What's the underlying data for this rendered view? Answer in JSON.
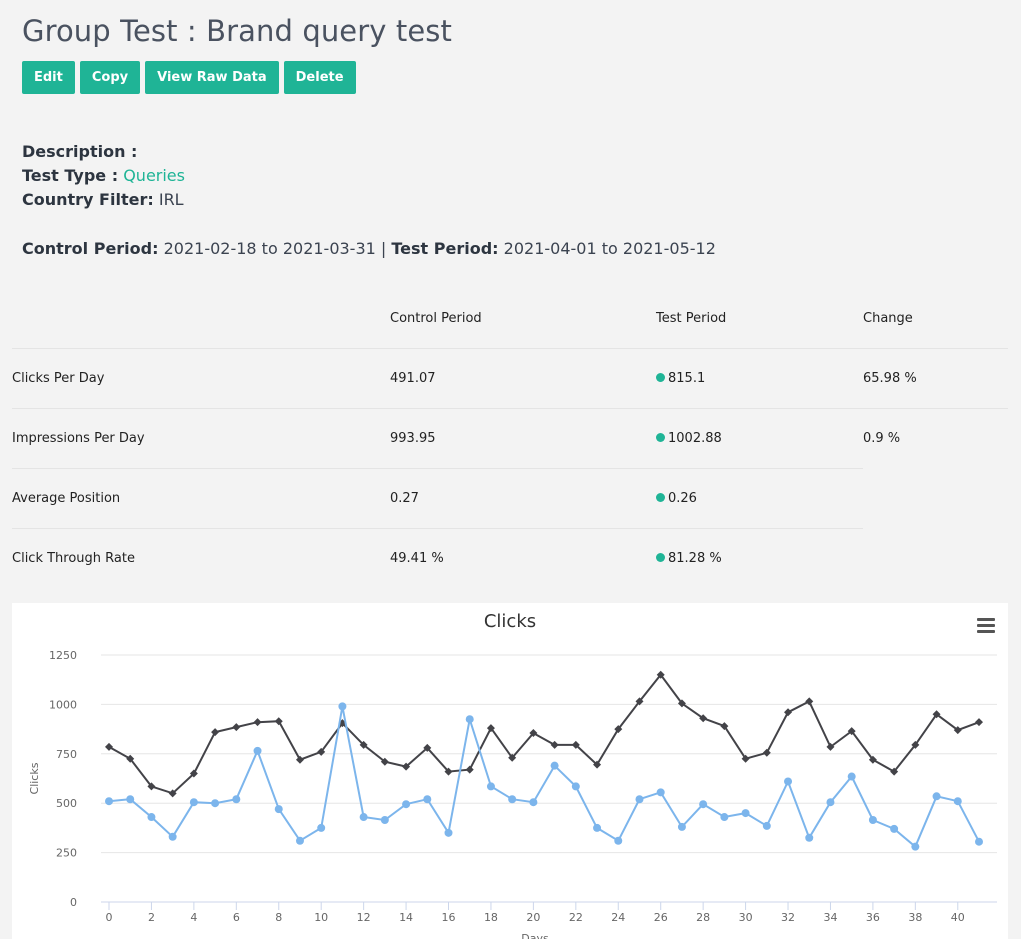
{
  "page": {
    "title": "Group Test : Brand query test"
  },
  "buttons": {
    "edit": "Edit",
    "copy": "Copy",
    "view_raw": "View Raw Data",
    "delete": "Delete"
  },
  "meta": {
    "description_label": "Description :",
    "test_type_label": "Test Type :",
    "test_type_value": "Queries",
    "country_label": "Country Filter:",
    "country_value": "IRL",
    "control_label": "Control Period:",
    "control_value": "2021-02-18 to 2021-03-31",
    "separator": "|",
    "test_label": "Test Period:",
    "test_value": "2021-04-01 to 2021-05-12"
  },
  "stats": {
    "headers": [
      "",
      "Control Period",
      "Test Period",
      "Change"
    ],
    "rows": [
      {
        "metric": "Clicks Per Day",
        "control": "491.07",
        "test": "815.1",
        "change": "65.98 %"
      },
      {
        "metric": "Impressions Per Day",
        "control": "993.95",
        "test": "1002.88",
        "change": "0.9 %"
      },
      {
        "metric": "Average Position",
        "control": "0.27",
        "test": "0.26",
        "change": ""
      },
      {
        "metric": "Click Through Rate",
        "control": "49.41 %",
        "test": "81.28 %",
        "change": ""
      }
    ],
    "status_color": "#1fb496"
  },
  "chart_data": {
    "type": "line",
    "title": "Clicks",
    "xlabel": "Days",
    "ylabel": "Clicks",
    "ylim": [
      0,
      1250
    ],
    "yticks": [
      0,
      250,
      500,
      750,
      1000,
      1250
    ],
    "xticks": [
      0,
      2,
      4,
      6,
      8,
      10,
      12,
      14,
      16,
      18,
      20,
      22,
      24,
      26,
      28,
      30,
      32,
      34,
      36,
      38,
      40
    ],
    "grid": true,
    "x": [
      0,
      1,
      2,
      3,
      4,
      5,
      6,
      7,
      8,
      9,
      10,
      11,
      12,
      13,
      14,
      15,
      16,
      17,
      18,
      19,
      20,
      21,
      22,
      23,
      24,
      25,
      26,
      27,
      28,
      29,
      30,
      31,
      32,
      33,
      34,
      35,
      36,
      37,
      38,
      39,
      40,
      41
    ],
    "series": [
      {
        "color": "#434348",
        "marker": "diamond",
        "values": [
          785,
          725,
          585,
          550,
          650,
          860,
          885,
          910,
          915,
          720,
          760,
          905,
          795,
          710,
          685,
          780,
          660,
          670,
          880,
          730,
          855,
          795,
          795,
          695,
          875,
          1015,
          1150,
          1005,
          930,
          890,
          725,
          755,
          960,
          1015,
          785,
          865,
          720,
          660,
          795,
          950,
          870,
          910
        ]
      },
      {
        "color": "#7cb5ec",
        "marker": "circle",
        "values": [
          510,
          520,
          430,
          330,
          505,
          500,
          520,
          765,
          470,
          310,
          375,
          990,
          430,
          415,
          495,
          520,
          350,
          925,
          585,
          520,
          505,
          690,
          585,
          375,
          310,
          520,
          555,
          380,
          495,
          430,
          450,
          385,
          610,
          325,
          505,
          635,
          415,
          370,
          280,
          535,
          510,
          305
        ]
      }
    ]
  },
  "chart_menu": {
    "icon": "hamburger-menu-icon"
  }
}
